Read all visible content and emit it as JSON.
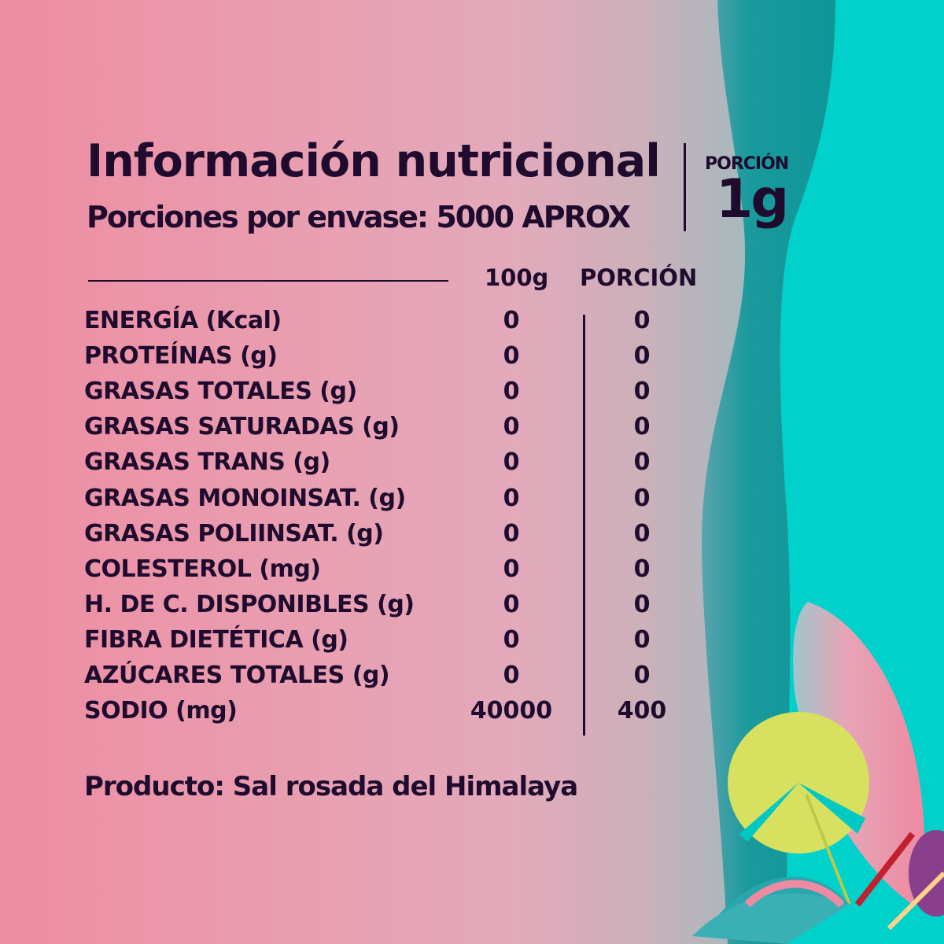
{
  "header": {
    "title": "Información nutricional",
    "servings_per_package": "Porciones por envase: 5000 APROX"
  },
  "portion": {
    "label": "PORCIÓN",
    "value": "1g"
  },
  "table": {
    "columns": [
      "100g",
      "PORCIÓN"
    ],
    "rows": [
      {
        "label": "ENERGÍA (Kcal)",
        "per_100g": "0",
        "per_portion": "0"
      },
      {
        "label": "PROTEÍNAS (g)",
        "per_100g": "0",
        "per_portion": "0"
      },
      {
        "label": "GRASAS TOTALES (g)",
        "per_100g": "0",
        "per_portion": "0"
      },
      {
        "label": "GRASAS SATURADAS (g)",
        "per_100g": "0",
        "per_portion": "0"
      },
      {
        "label": "GRASAS TRANS (g)",
        "per_100g": "0",
        "per_portion": "0"
      },
      {
        "label": "GRASAS MONOINSAT. (g)",
        "per_100g": "0",
        "per_portion": "0"
      },
      {
        "label": "GRASAS POLIINSAT. (g)",
        "per_100g": "0",
        "per_portion": "0"
      },
      {
        "label": "COLESTEROL (mg)",
        "per_100g": "0",
        "per_portion": "0"
      },
      {
        "label": "H. DE C. DISPONIBLES (g)",
        "per_100g": "0",
        "per_portion": "0"
      },
      {
        "label": "FIBRA DIETÉTICA (g)",
        "per_100g": "0",
        "per_portion": "0"
      },
      {
        "label": "AZÚCARES TOTALES (g)",
        "per_100g": "0",
        "per_portion": "0"
      },
      {
        "label": "SODIO (mg)",
        "per_100g": "40000",
        "per_portion": "400"
      }
    ]
  },
  "footer": {
    "product": "Producto: Sal rosada del Himalaya"
  },
  "colors": {
    "text": "#1f0b2e",
    "pink": "#ee8da2",
    "teal_dark": "#139a9c",
    "turquoise": "#00d1cb",
    "leaf_yellow": "#d8e060"
  },
  "decoration": {
    "icon": "tropical-leaves-illustration"
  }
}
